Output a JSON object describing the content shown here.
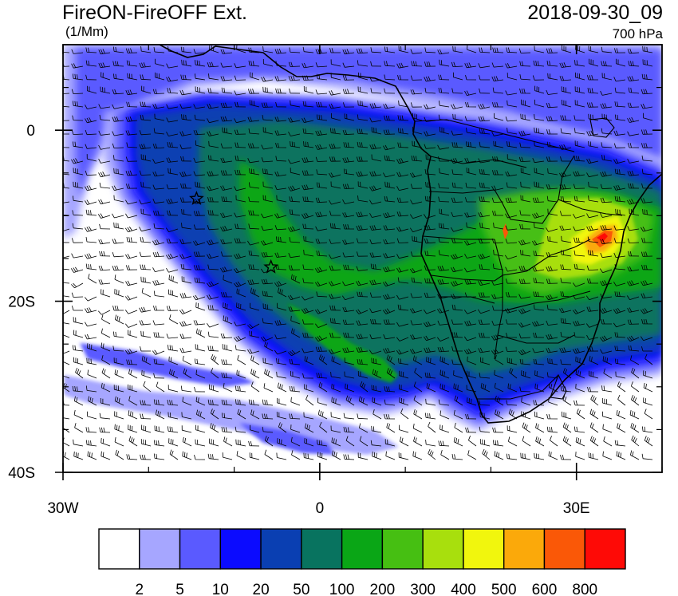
{
  "header": {
    "title": "FireON-FireOFF Ext.",
    "units": "(1/Mm)",
    "datetime": "2018-09-30_09",
    "level": "700 hPa"
  },
  "map": {
    "lat_ticks": [
      {
        "label": "0",
        "lat": 0
      },
      {
        "label": "20S",
        "lat": -20
      },
      {
        "label": "40S",
        "lat": -40
      }
    ],
    "lon_ticks": [
      {
        "label": "30W",
        "lon": -30
      },
      {
        "label": "0",
        "lon": 0
      },
      {
        "label": "30E",
        "lon": 30
      }
    ],
    "markers": [
      {
        "name": "star-marker-1",
        "lon": -14.4,
        "lat": -8.0
      },
      {
        "name": "star-marker-2",
        "lon": -5.7,
        "lat": -16.0
      }
    ]
  },
  "colorbar": {
    "colors": [
      "#ffffff",
      "#a6a6ff",
      "#5a5aff",
      "#0b0bff",
      "#0a3fb2",
      "#08735f",
      "#0aa616",
      "#46bf12",
      "#a8df0d",
      "#f1f60d",
      "#fba90a",
      "#fa5807",
      "#fe0a06"
    ],
    "labels": [
      "2",
      "5",
      "10",
      "20",
      "50",
      "100",
      "200",
      "300",
      "400",
      "500",
      "600",
      "800"
    ]
  }
}
